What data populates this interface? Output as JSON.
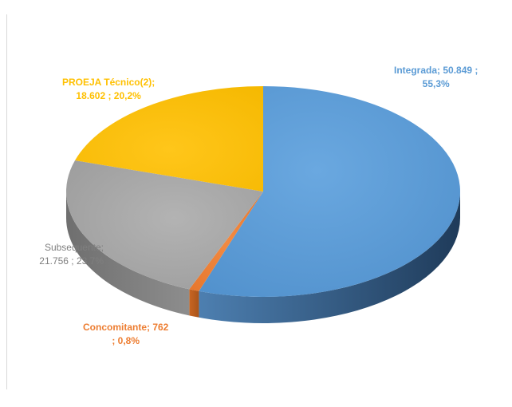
{
  "chart_data": {
    "type": "pie",
    "title": "",
    "slices": [
      {
        "label": "Integrada",
        "value": 50849,
        "percent": 55.3,
        "label_lines": [
          "Integrada;  50.849 ;",
          "55,3%"
        ],
        "color": "#5b9bd5"
      },
      {
        "label": "Concomitante",
        "value": 762,
        "percent": 0.8,
        "label_lines": [
          "Concomitante;  762",
          "; 0,8%"
        ],
        "color": "#ed7d31"
      },
      {
        "label": "Subsequente",
        "value": 21756,
        "percent": 23.7,
        "label_lines": [
          "Subsequente;",
          "21.756 ; 23,7%"
        ],
        "color": "#a5a5a5"
      },
      {
        "label": "PROEJA Técnico(2)",
        "value": 18602,
        "percent": 20.2,
        "label_lines": [
          "PROEJA Técnico(2);",
          "18.602 ; 20,2%"
        ],
        "color": "#ffc000"
      }
    ],
    "start": "12 o'clock",
    "direction": "clockwise",
    "style": "3d",
    "legend": "none"
  }
}
